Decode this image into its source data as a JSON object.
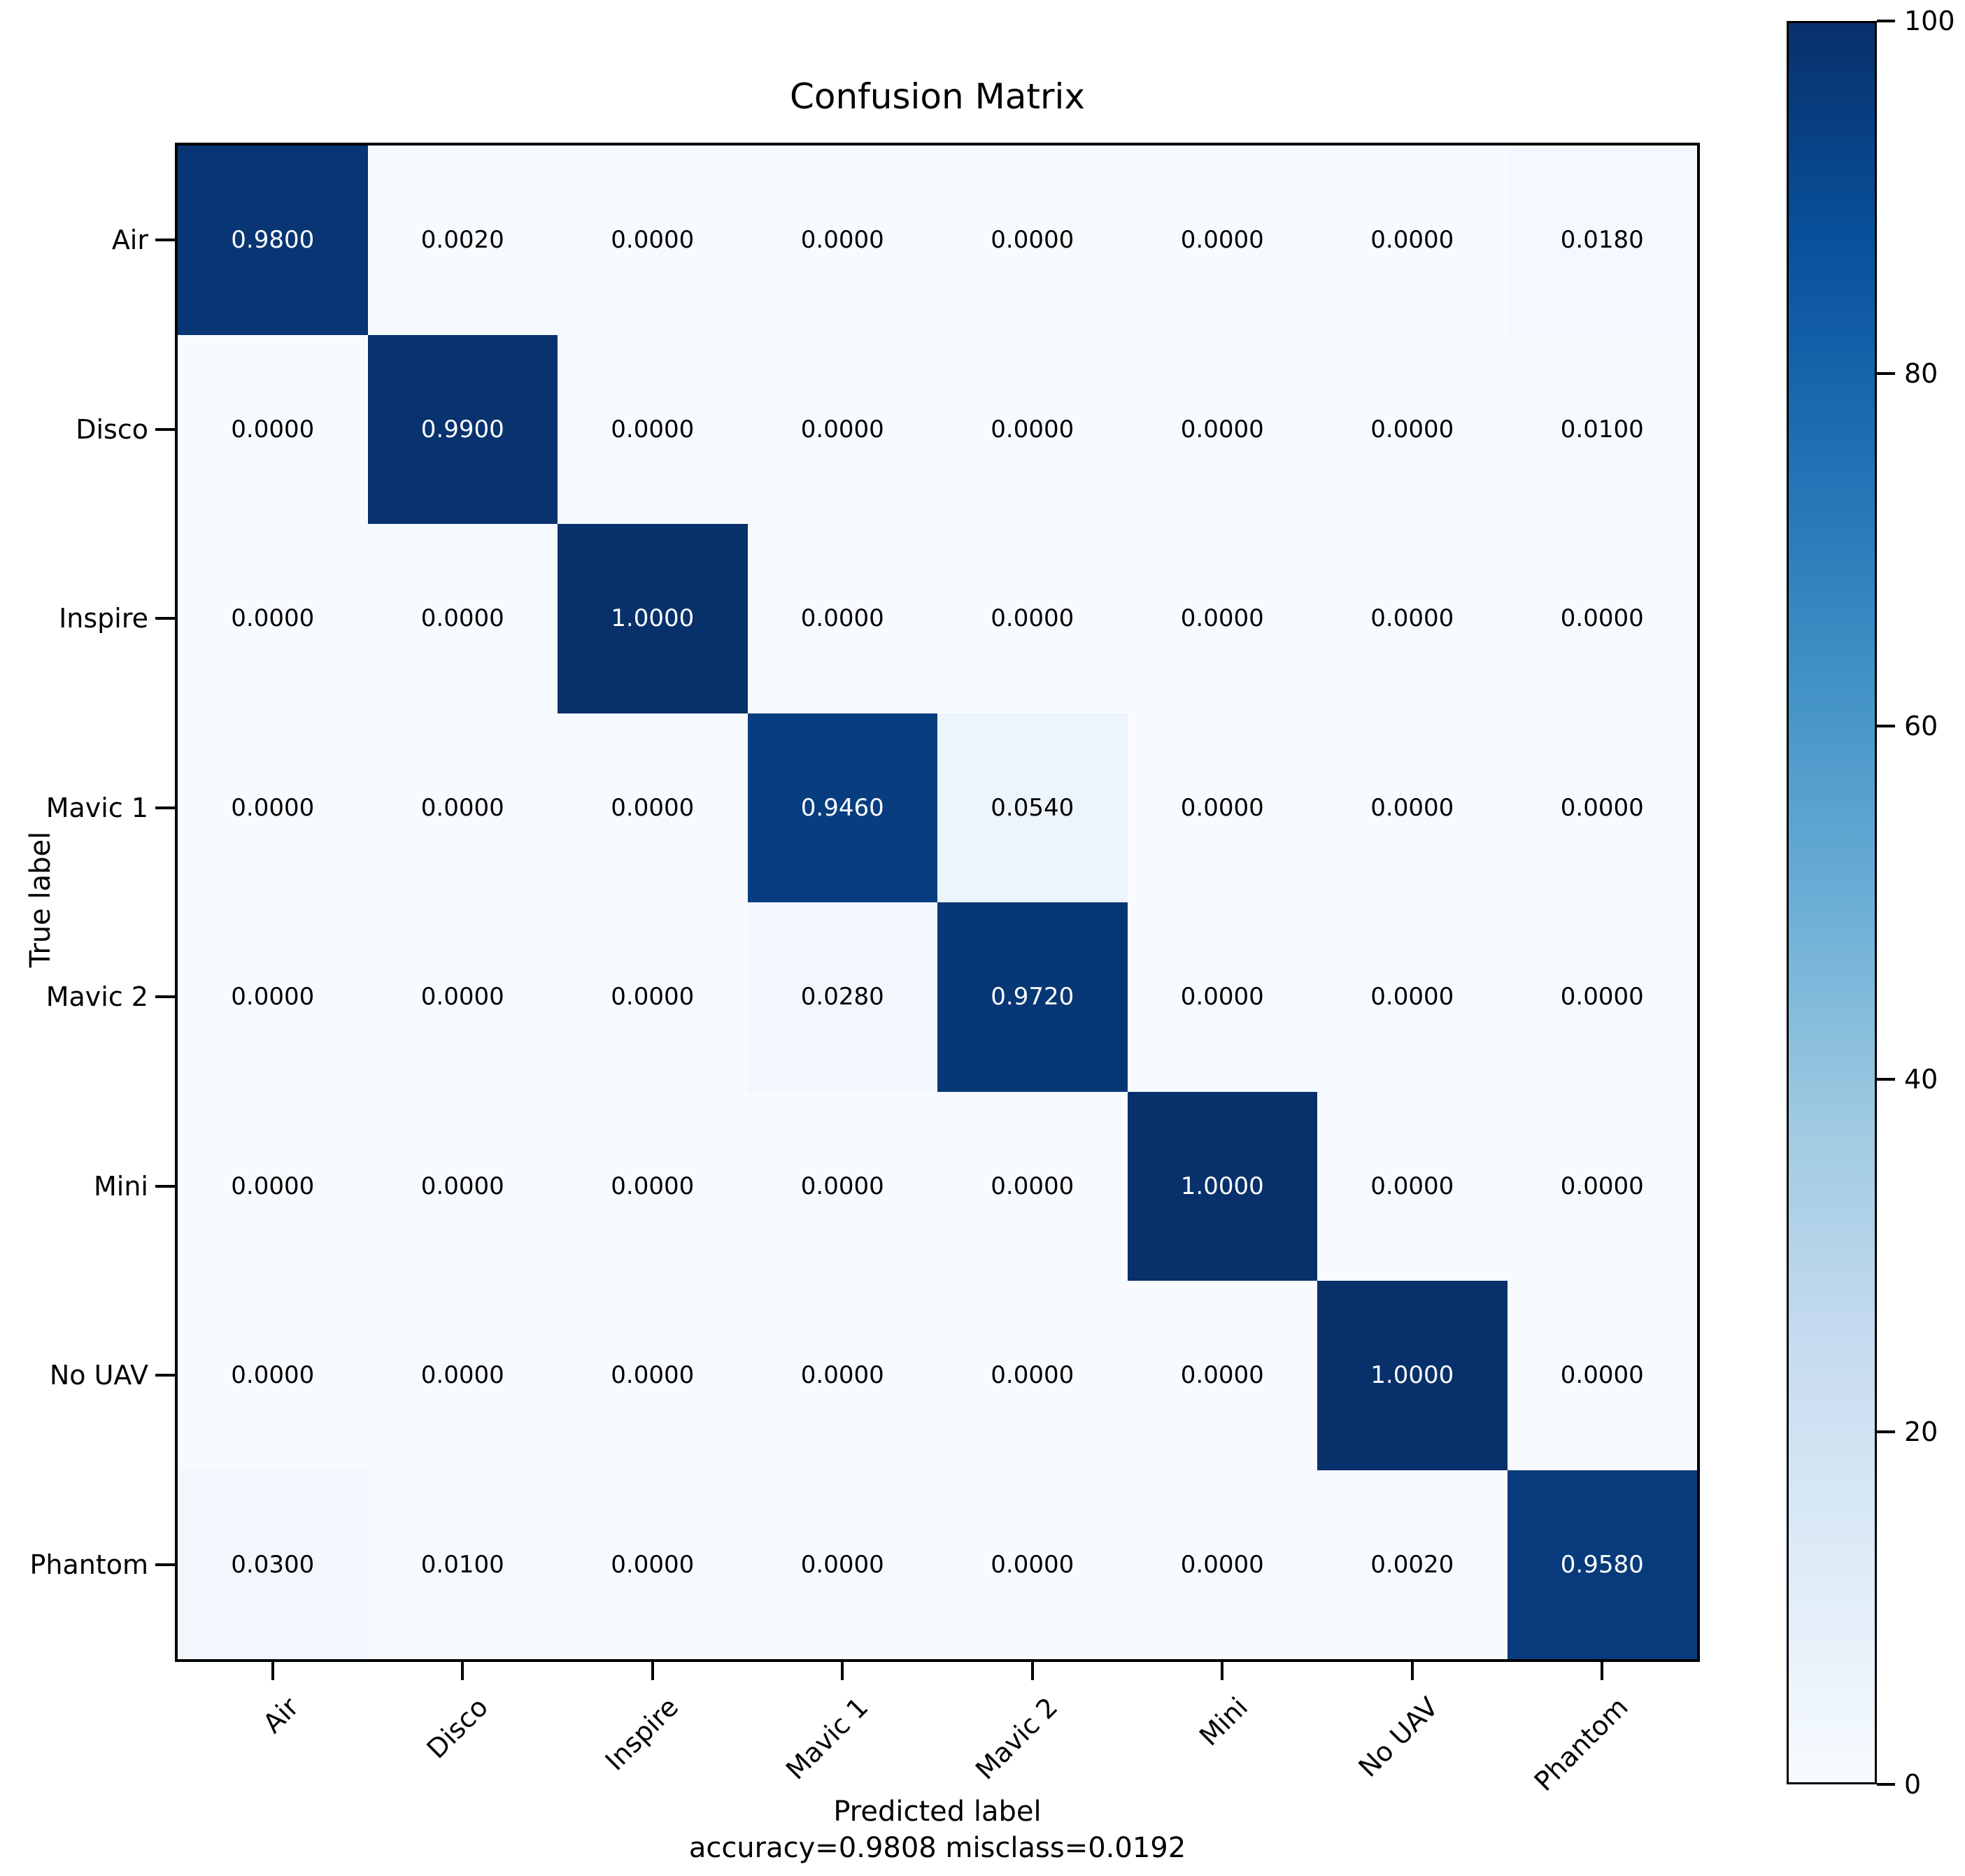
{
  "figure": {
    "title": "Confusion Matrix",
    "x_axis_label": "Predicted label",
    "y_axis_label": "True label",
    "caption": "accuracy=0.9808 misclass=0.0192"
  },
  "chart_data": {
    "type": "heatmap",
    "title": "Confusion Matrix",
    "xlabel": "Predicted label",
    "ylabel": "True label",
    "annotation": "accuracy=0.9808 misclass=0.0192",
    "accuracy": 0.9808,
    "misclass": 0.0192,
    "categories": [
      "Air",
      "Disco",
      "Inspire",
      "Mavic 1",
      "Mavic 2",
      "Mini",
      "No UAV",
      "Phantom"
    ],
    "x_tick_labels": [
      "Air",
      "Disco",
      "Inspire",
      "Mavic 1",
      "Mavic 2",
      "Mini",
      "No UAV",
      "Phantom"
    ],
    "y_tick_labels": [
      "Air",
      "Disco",
      "Inspire",
      "Mavic 1",
      "Mavic 2",
      "Mini",
      "No UAV",
      "Phantom"
    ],
    "matrix": [
      [
        0.98,
        0.002,
        0.0,
        0.0,
        0.0,
        0.0,
        0.0,
        0.018
      ],
      [
        0.0,
        0.99,
        0.0,
        0.0,
        0.0,
        0.0,
        0.0,
        0.01
      ],
      [
        0.0,
        0.0,
        1.0,
        0.0,
        0.0,
        0.0,
        0.0,
        0.0
      ],
      [
        0.0,
        0.0,
        0.0,
        0.946,
        0.054,
        0.0,
        0.0,
        0.0
      ],
      [
        0.0,
        0.0,
        0.0,
        0.028,
        0.972,
        0.0,
        0.0,
        0.0
      ],
      [
        0.0,
        0.0,
        0.0,
        0.0,
        0.0,
        1.0,
        0.0,
        0.0
      ],
      [
        0.0,
        0.0,
        0.0,
        0.0,
        0.0,
        0.0,
        1.0,
        0.0
      ],
      [
        0.03,
        0.01,
        0.0,
        0.0,
        0.0,
        0.0,
        0.002,
        0.958
      ]
    ],
    "value_decimals": 4,
    "colormap": "Blues",
    "colorbar": {
      "min": 0,
      "max": 100,
      "ticks": [
        0,
        20,
        40,
        60,
        80,
        100
      ],
      "position": "right"
    },
    "grid": false,
    "legend_position": "none"
  },
  "colors": {
    "background": "#ffffff",
    "axis": "#000000",
    "cell_text_dark": "#000000",
    "cell_text_light": "#ffffff",
    "colormap_stops": [
      "#f7fbff",
      "#deebf7",
      "#c6dbef",
      "#9ecae1",
      "#6baed6",
      "#4292c6",
      "#2171b5",
      "#08519c",
      "#08306b"
    ]
  }
}
